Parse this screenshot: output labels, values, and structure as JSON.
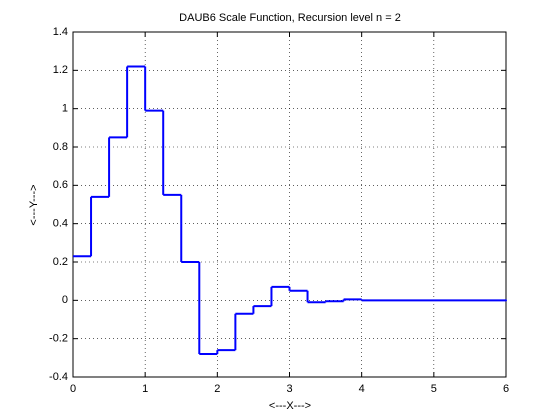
{
  "chart_data": {
    "type": "line",
    "step": "post",
    "title": "DAUB6 Scale Function, Recursion level n = 2",
    "x_label": "<---X--->",
    "y_label": "<---Y--->",
    "x": [
      0,
      0.25,
      0.5,
      0.75,
      1,
      1.25,
      1.5,
      1.75,
      2,
      2.25,
      2.5,
      2.75,
      3,
      3.25,
      3.5,
      3.75,
      4,
      6
    ],
    "series": [
      {
        "color": "#0000ff",
        "values": [
          0.23,
          0.54,
          0.85,
          1.22,
          0.99,
          0.55,
          0.2,
          -0.28,
          -0.26,
          -0.07,
          -0.03,
          0.07,
          0.05,
          -0.01,
          -0.005,
          0.005,
          0,
          0
        ]
      }
    ],
    "xlim": [
      0,
      6
    ],
    "xticks": [
      0,
      1,
      2,
      3,
      4,
      5,
      6
    ],
    "ylim": [
      -0.4,
      1.4
    ],
    "yticks": [
      -0.4,
      -0.2,
      0,
      0.2,
      0.4,
      0.6,
      0.8,
      1,
      1.2,
      1.4
    ],
    "grid": true
  }
}
